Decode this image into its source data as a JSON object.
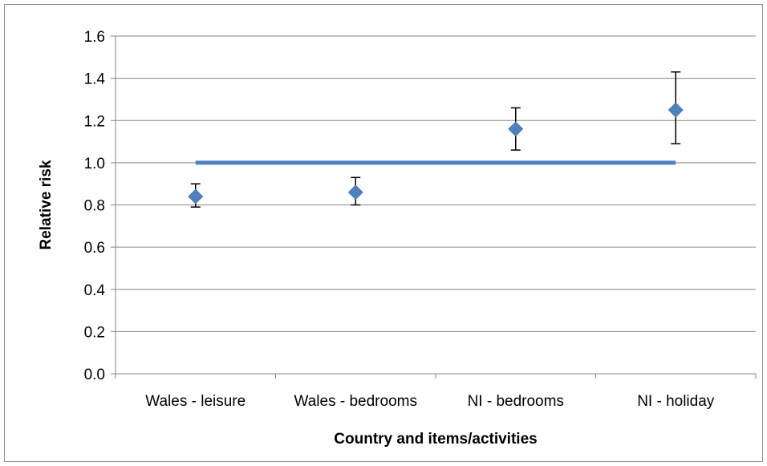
{
  "chart_data": {
    "type": "scatter",
    "title": "",
    "xlabel": "Country and items/activities",
    "ylabel": "Relative risk",
    "categories": [
      "Wales - leisure",
      "Wales - bedrooms",
      "NI - bedrooms",
      "NI - holiday"
    ],
    "ylim": [
      0.0,
      1.6
    ],
    "yticks": [
      "0.0",
      "0.2",
      "0.4",
      "0.6",
      "0.8",
      "1.0",
      "1.2",
      "1.4",
      "1.6"
    ],
    "grid": true,
    "legend": "none",
    "series": [
      {
        "values": [
          0.84,
          0.86,
          1.16,
          1.25
        ],
        "error_low": [
          0.79,
          0.8,
          1.06,
          1.09
        ],
        "error_high": [
          0.9,
          0.93,
          1.26,
          1.43
        ],
        "marker": "diamond"
      }
    ],
    "reference_line": {
      "y": 1.0,
      "x_from": "Wales - leisure",
      "x_to": "NI - holiday"
    },
    "colors": {
      "marker": "#4f81bd",
      "reference_line": "#4f81bd",
      "error_bar": "#000000",
      "grid": "#868686",
      "axis": "#868686"
    }
  }
}
